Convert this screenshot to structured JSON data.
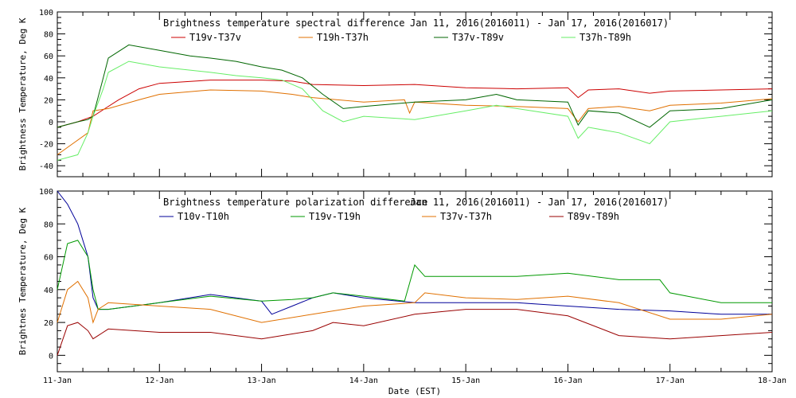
{
  "xlabel": "Date (EST)",
  "x_ticks": [
    "11-Jan",
    "12-Jan",
    "13-Jan",
    "14-Jan",
    "15-Jan",
    "16-Jan",
    "17-Jan",
    "18-Jan"
  ],
  "chart_data": [
    {
      "type": "line",
      "title": "Brightness temperature spectral difference",
      "date_range": "Jan 11, 2016(2016011) - Jan 17, 2016(2016017)",
      "ylabel": "Brightness Temperature, Deg K",
      "ylim": [
        -50,
        100
      ],
      "xlim": [
        0,
        7
      ],
      "y_ticks": [
        -40,
        -20,
        0,
        20,
        40,
        60,
        80,
        100
      ],
      "series": [
        {
          "name": "T19v-T37v",
          "color": "#cc0000",
          "x": [
            0.0,
            0.2,
            0.35,
            0.6,
            0.8,
            1.0,
            1.5,
            2.0,
            2.3,
            2.5,
            3.0,
            3.5,
            4.0,
            4.5,
            5.0,
            5.1,
            5.2,
            5.5,
            5.8,
            6.0,
            6.5,
            7.0
          ],
          "y": [
            -5,
            0,
            5,
            20,
            30,
            35,
            38,
            38,
            37,
            34,
            33,
            34,
            31,
            30,
            31,
            22,
            29,
            30,
            26,
            28,
            29,
            30
          ]
        },
        {
          "name": "T19h-T37h",
          "color": "#e07000",
          "x": [
            0.0,
            0.15,
            0.3,
            0.35,
            0.5,
            0.8,
            1.0,
            1.5,
            2.0,
            2.3,
            2.5,
            3.0,
            3.4,
            3.45,
            3.5,
            4.0,
            4.5,
            5.0,
            5.1,
            5.2,
            5.5,
            5.8,
            6.0,
            6.5,
            7.0
          ],
          "y": [
            -30,
            -20,
            -10,
            10,
            12,
            20,
            25,
            29,
            28,
            25,
            22,
            18,
            20,
            8,
            18,
            15,
            14,
            12,
            0,
            12,
            14,
            10,
            15,
            17,
            21
          ]
        },
        {
          "name": "T37v-T89v",
          "color": "#006600",
          "x": [
            0.0,
            0.2,
            0.3,
            0.35,
            0.45,
            0.5,
            0.7,
            1.0,
            1.3,
            1.5,
            1.75,
            2.0,
            2.2,
            2.4,
            2.6,
            2.8,
            3.0,
            3.5,
            4.0,
            4.3,
            4.5,
            5.0,
            5.1,
            5.2,
            5.5,
            5.8,
            6.0,
            6.5,
            7.0
          ],
          "y": [
            -5,
            0,
            2,
            5,
            40,
            58,
            70,
            65,
            60,
            58,
            55,
            50,
            47,
            40,
            25,
            12,
            14,
            18,
            20,
            25,
            20,
            18,
            -3,
            10,
            8,
            -5,
            10,
            12,
            20
          ]
        },
        {
          "name": "T37h-T89h",
          "color": "#66ee66",
          "x": [
            0.0,
            0.2,
            0.3,
            0.35,
            0.45,
            0.5,
            0.7,
            1.0,
            1.5,
            1.75,
            2.0,
            2.2,
            2.4,
            2.6,
            2.8,
            3.0,
            3.5,
            4.0,
            4.3,
            4.5,
            5.0,
            5.1,
            5.2,
            5.5,
            5.8,
            6.0,
            6.5,
            7.0
          ],
          "y": [
            -35,
            -30,
            -10,
            5,
            30,
            45,
            55,
            50,
            45,
            42,
            40,
            38,
            30,
            10,
            0,
            5,
            2,
            10,
            15,
            12,
            5,
            -15,
            -5,
            -10,
            -20,
            0,
            5,
            10
          ]
        }
      ]
    },
    {
      "type": "line",
      "title": "Brightness temperature polarization difference",
      "date_range": "Jan 11, 2016(2016011) - Jan 17, 2016(2016017)",
      "ylabel": "Brightnes Temperature, Deg K",
      "ylim": [
        -10,
        100
      ],
      "xlim": [
        0,
        7
      ],
      "y_ticks": [
        0,
        20,
        40,
        60,
        80,
        100
      ],
      "series": [
        {
          "name": "T10v-T10h",
          "color": "#000099",
          "x": [
            0.0,
            0.1,
            0.2,
            0.3,
            0.35,
            0.4,
            0.5,
            1.0,
            1.5,
            2.0,
            2.1,
            2.3,
            2.5,
            2.7,
            3.0,
            3.5,
            4.0,
            4.5,
            5.0,
            5.5,
            6.0,
            6.5,
            7.0
          ],
          "y": [
            100,
            92,
            80,
            60,
            35,
            28,
            28,
            32,
            37,
            33,
            25,
            30,
            35,
            38,
            35,
            32,
            32,
            32,
            30,
            28,
            27,
            25,
            25
          ]
        },
        {
          "name": "T19v-T19h",
          "color": "#009900",
          "x": [
            0.0,
            0.1,
            0.2,
            0.3,
            0.35,
            0.4,
            0.5,
            1.0,
            1.5,
            2.0,
            2.3,
            2.5,
            2.7,
            3.0,
            3.4,
            3.5,
            3.6,
            4.0,
            4.5,
            5.0,
            5.5,
            5.9,
            6.0,
            6.5,
            7.0
          ],
          "y": [
            40,
            68,
            70,
            60,
            40,
            28,
            28,
            32,
            36,
            33,
            34,
            35,
            38,
            36,
            33,
            55,
            48,
            48,
            48,
            50,
            46,
            46,
            38,
            32,
            32
          ]
        },
        {
          "name": "T37v-T37h",
          "color": "#e07000",
          "x": [
            0.0,
            0.1,
            0.2,
            0.3,
            0.35,
            0.4,
            0.5,
            1.0,
            1.5,
            2.0,
            2.5,
            3.0,
            3.5,
            3.6,
            4.0,
            4.5,
            5.0,
            5.5,
            6.0,
            6.5,
            7.0
          ],
          "y": [
            20,
            40,
            45,
            35,
            20,
            28,
            32,
            30,
            28,
            20,
            25,
            30,
            32,
            38,
            35,
            34,
            36,
            32,
            22,
            22,
            25
          ]
        },
        {
          "name": "T89v-T89h",
          "color": "#990000",
          "x": [
            0.0,
            0.1,
            0.2,
            0.3,
            0.35,
            0.4,
            0.5,
            1.0,
            1.5,
            2.0,
            2.3,
            2.5,
            2.7,
            3.0,
            3.5,
            4.0,
            4.5,
            5.0,
            5.5,
            6.0,
            6.5,
            7.0
          ],
          "y": [
            0,
            18,
            20,
            15,
            10,
            12,
            16,
            14,
            14,
            10,
            13,
            15,
            20,
            18,
            25,
            28,
            28,
            24,
            12,
            10,
            12,
            14
          ]
        }
      ]
    }
  ]
}
